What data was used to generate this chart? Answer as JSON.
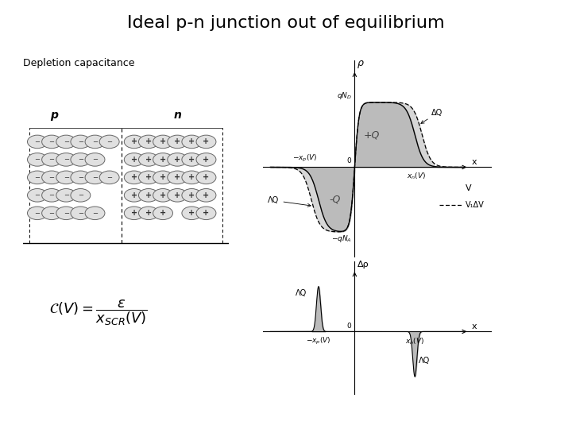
{
  "title": "Ideal p-n junction out of equilibrium",
  "subtitle": "Depletion capacitance",
  "title_fontsize": 16,
  "subtitle_fontsize": 9,
  "bg_color": "#ffffff",
  "gray_fill": "#bbbbbb",
  "top_plot": {
    "xmin": -3.5,
    "xmax": 4.5,
    "ymin": -3.0,
    "ymax": 3.2,
    "xp": -1.5,
    "xn": 2.5,
    "qND": 2.3,
    "qNA": -2.3,
    "delta": 0.3
  },
  "bottom_plot": {
    "xmin": -3.5,
    "xmax": 4.5,
    "ymin": -2.5,
    "ymax": 2.5,
    "xp": -1.5,
    "xn": 2.5,
    "peak_height": 2.0,
    "trough_depth": -2.0
  },
  "pn_circles_neg": [
    [
      0.07,
      0.78
    ],
    [
      0.14,
      0.78
    ],
    [
      0.21,
      0.78
    ],
    [
      0.28,
      0.78
    ],
    [
      0.35,
      0.78
    ],
    [
      0.42,
      0.78
    ],
    [
      0.07,
      0.65
    ],
    [
      0.14,
      0.65
    ],
    [
      0.21,
      0.65
    ],
    [
      0.28,
      0.65
    ],
    [
      0.35,
      0.65
    ],
    [
      0.07,
      0.52
    ],
    [
      0.14,
      0.52
    ],
    [
      0.21,
      0.52
    ],
    [
      0.28,
      0.52
    ],
    [
      0.35,
      0.52
    ],
    [
      0.42,
      0.52
    ],
    [
      0.07,
      0.39
    ],
    [
      0.14,
      0.39
    ],
    [
      0.21,
      0.39
    ],
    [
      0.28,
      0.39
    ],
    [
      0.07,
      0.26
    ],
    [
      0.14,
      0.26
    ],
    [
      0.21,
      0.26
    ],
    [
      0.28,
      0.26
    ],
    [
      0.35,
      0.26
    ]
  ],
  "pn_circles_pos": [
    [
      0.54,
      0.78
    ],
    [
      0.61,
      0.78
    ],
    [
      0.68,
      0.78
    ],
    [
      0.75,
      0.78
    ],
    [
      0.82,
      0.78
    ],
    [
      0.89,
      0.78
    ],
    [
      0.54,
      0.65
    ],
    [
      0.61,
      0.65
    ],
    [
      0.68,
      0.65
    ],
    [
      0.75,
      0.65
    ],
    [
      0.82,
      0.65
    ],
    [
      0.89,
      0.65
    ],
    [
      0.54,
      0.52
    ],
    [
      0.61,
      0.52
    ],
    [
      0.68,
      0.52
    ],
    [
      0.75,
      0.52
    ],
    [
      0.82,
      0.52
    ],
    [
      0.89,
      0.52
    ],
    [
      0.54,
      0.39
    ],
    [
      0.61,
      0.39
    ],
    [
      0.68,
      0.39
    ],
    [
      0.75,
      0.39
    ],
    [
      0.82,
      0.39
    ],
    [
      0.89,
      0.39
    ],
    [
      0.54,
      0.26
    ],
    [
      0.61,
      0.26
    ],
    [
      0.68,
      0.26
    ],
    [
      0.82,
      0.26
    ],
    [
      0.89,
      0.26
    ]
  ],
  "legend_V": "V",
  "legend_VdV": "V₁ΔV"
}
